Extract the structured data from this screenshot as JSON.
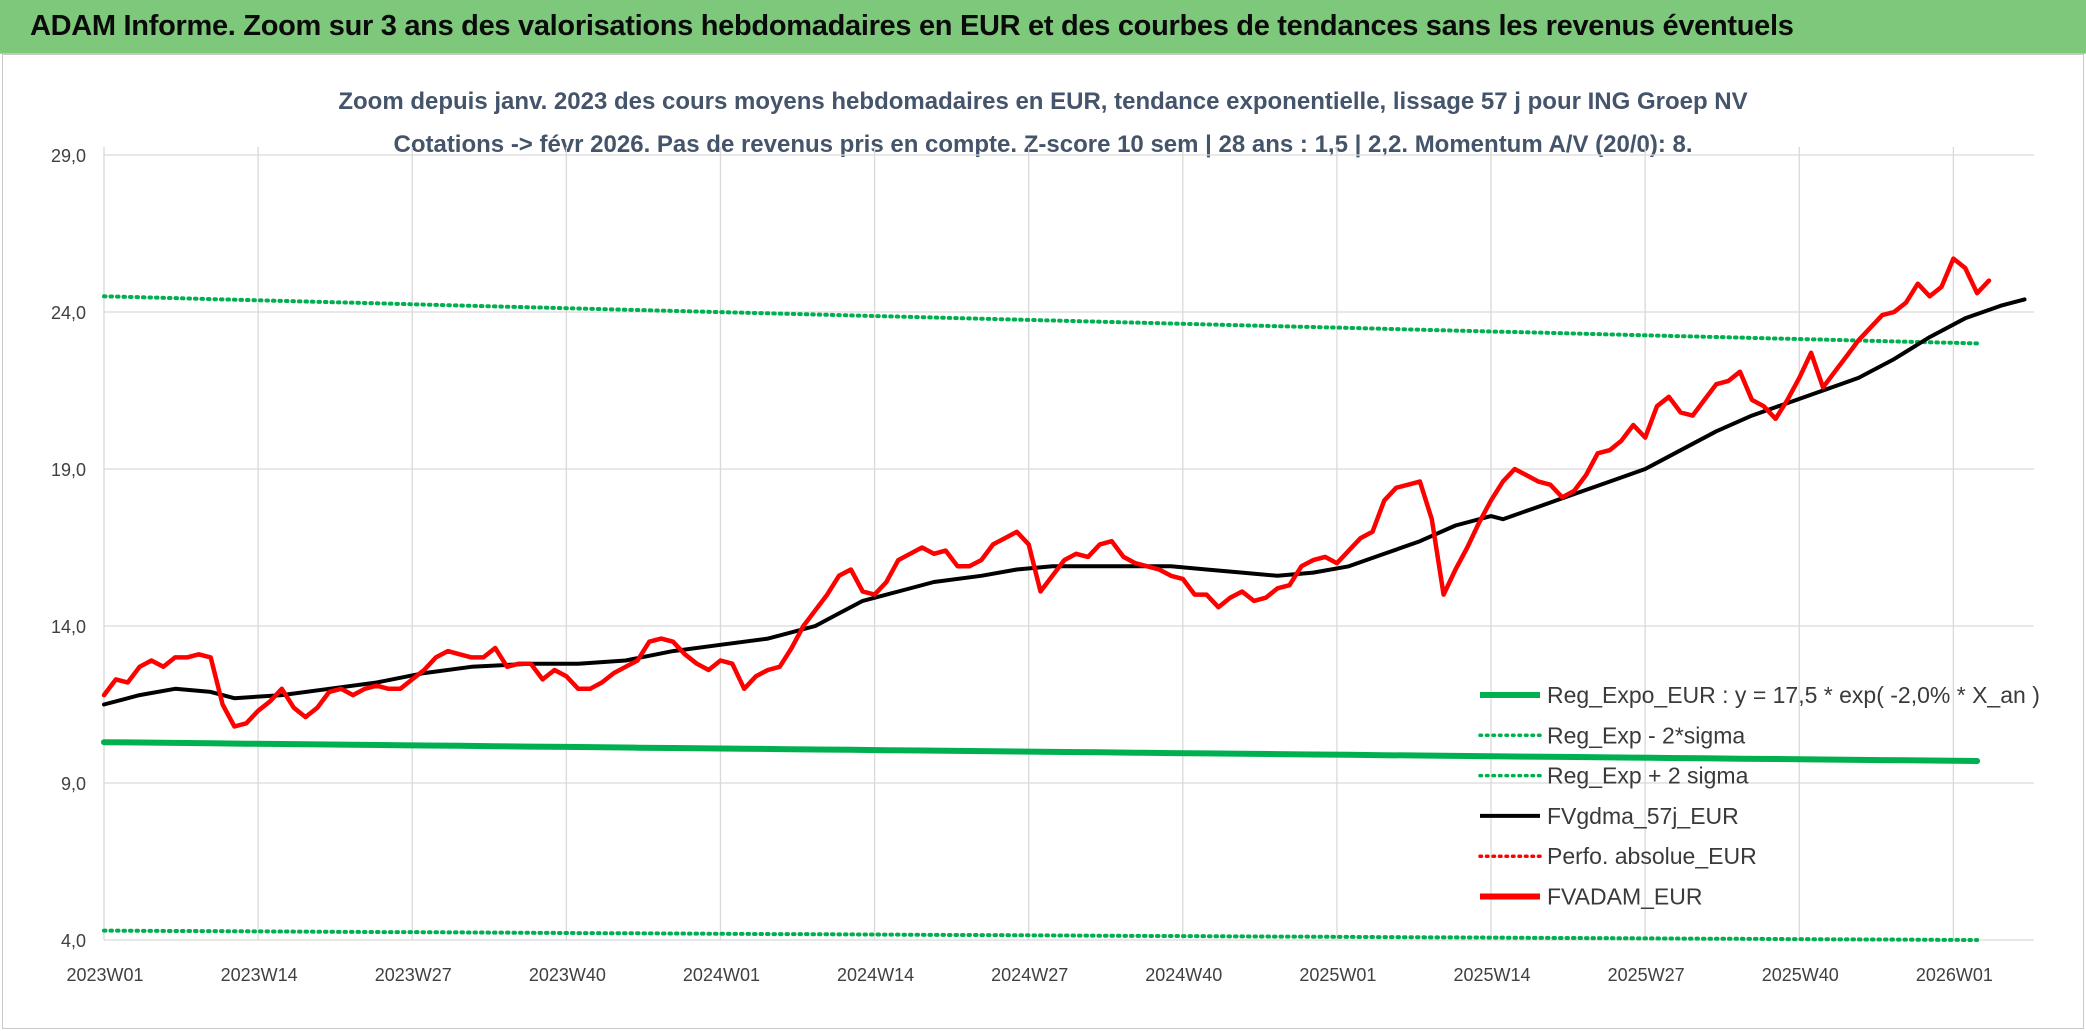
{
  "header": {
    "title": "ADAM Informe. Zoom sur 3 ans des valorisations hebdomadaires en EUR et des courbes de tendances sans les revenus éventuels"
  },
  "colors": {
    "header_bg": "#7dc87a",
    "reg_expo": "#00b050",
    "price": "#ff0000",
    "fvgdma": "#000000",
    "grid": "#d9d9d9"
  },
  "chart_data": {
    "type": "line",
    "title_line1": "Zoom depuis janv. 2023 des cours moyens hebdomadaires en EUR, tendance exponentielle, lissage 57 j pour ING Groep NV",
    "title_line2": "Cotations -> févr 2026. Pas de revenus pris en compte. Z-score 10 sem | 28 ans : 1,5 | 2,2. Momentum A/V (20/0): 8.",
    "ylim": [
      4,
      30
    ],
    "yticks": [
      4,
      9,
      14,
      19,
      24,
      29
    ],
    "ytick_labels": [
      "4,0",
      "9,0",
      "14,0",
      "19,0",
      "24,0",
      "29,0"
    ],
    "x_count": 159,
    "xticks": [
      {
        "index": 0,
        "label": "2023W01"
      },
      {
        "index": 13,
        "label": "2023W14"
      },
      {
        "index": 26,
        "label": "2023W27"
      },
      {
        "index": 39,
        "label": "2023W40"
      },
      {
        "index": 52,
        "label": "2024W01"
      },
      {
        "index": 65,
        "label": "2024W14"
      },
      {
        "index": 78,
        "label": "2024W27"
      },
      {
        "index": 91,
        "label": "2024W40"
      },
      {
        "index": 104,
        "label": "2025W01"
      },
      {
        "index": 117,
        "label": "2025W14"
      },
      {
        "index": 130,
        "label": "2025W27"
      },
      {
        "index": 143,
        "label": "2025W40"
      },
      {
        "index": 156,
        "label": "2026W01"
      }
    ],
    "series": [
      {
        "key": "reg_expo",
        "name": "Reg_Expo_EUR : y = 17,5 * exp( -2,0% *  X_an )",
        "style": "solid-thick",
        "color": "#00b050",
        "start": 10.3,
        "end": 9.7
      },
      {
        "key": "reg_minus",
        "name": "Reg_Exp - 2*sigma",
        "style": "dotted",
        "color": "#00b050",
        "start": 4.3,
        "end": 4.0
      },
      {
        "key": "reg_plus",
        "name": "Reg_Exp + 2 sigma",
        "style": "dotted",
        "color": "#00b050",
        "start": 24.5,
        "end": 23.0
      },
      {
        "key": "fvgdma",
        "name": "FVgdma_57j_EUR",
        "style": "solid",
        "color": "#000000",
        "points": [
          [
            0,
            11.5
          ],
          [
            3,
            11.8
          ],
          [
            6,
            12.0
          ],
          [
            9,
            11.9
          ],
          [
            11,
            11.7
          ],
          [
            15,
            11.8
          ],
          [
            19,
            12.0
          ],
          [
            23,
            12.2
          ],
          [
            27,
            12.5
          ],
          [
            31,
            12.7
          ],
          [
            36,
            12.8
          ],
          [
            40,
            12.8
          ],
          [
            44,
            12.9
          ],
          [
            48,
            13.2
          ],
          [
            52,
            13.4
          ],
          [
            56,
            13.6
          ],
          [
            60,
            14.0
          ],
          [
            62,
            14.4
          ],
          [
            64,
            14.8
          ],
          [
            67,
            15.1
          ],
          [
            70,
            15.4
          ],
          [
            74,
            15.6
          ],
          [
            77,
            15.8
          ],
          [
            80,
            15.9
          ],
          [
            83,
            15.9
          ],
          [
            87,
            15.9
          ],
          [
            90,
            15.9
          ],
          [
            93,
            15.8
          ],
          [
            96,
            15.7
          ],
          [
            99,
            15.6
          ],
          [
            102,
            15.7
          ],
          [
            105,
            15.9
          ],
          [
            108,
            16.3
          ],
          [
            111,
            16.7
          ],
          [
            114,
            17.2
          ],
          [
            117,
            17.5
          ],
          [
            118,
            17.4
          ],
          [
            121,
            17.8
          ],
          [
            124,
            18.2
          ],
          [
            127,
            18.6
          ],
          [
            130,
            19.0
          ],
          [
            133,
            19.6
          ],
          [
            136,
            20.2
          ],
          [
            139,
            20.7
          ],
          [
            142,
            21.1
          ],
          [
            145,
            21.5
          ],
          [
            148,
            21.9
          ],
          [
            151,
            22.5
          ],
          [
            154,
            23.2
          ],
          [
            157,
            23.8
          ],
          [
            160,
            24.2
          ],
          [
            162,
            24.4
          ]
        ]
      },
      {
        "key": "perfo",
        "name": "Perfo. absolue_EUR",
        "style": "dotted",
        "color": "#ff0000"
      },
      {
        "key": "price",
        "name": "FVADAM_EUR",
        "style": "solid-thick",
        "color": "#ff0000",
        "points": [
          [
            0,
            11.8
          ],
          [
            1,
            12.3
          ],
          [
            2,
            12.2
          ],
          [
            3,
            12.7
          ],
          [
            4,
            12.9
          ],
          [
            5,
            12.7
          ],
          [
            6,
            13.0
          ],
          [
            7,
            13.0
          ],
          [
            8,
            13.1
          ],
          [
            9,
            13.0
          ],
          [
            10,
            11.5
          ],
          [
            11,
            10.8
          ],
          [
            12,
            10.9
          ],
          [
            13,
            11.3
          ],
          [
            14,
            11.6
          ],
          [
            15,
            12.0
          ],
          [
            16,
            11.4
          ],
          [
            17,
            11.1
          ],
          [
            18,
            11.4
          ],
          [
            19,
            11.9
          ],
          [
            20,
            12.0
          ],
          [
            21,
            11.8
          ],
          [
            22,
            12.0
          ],
          [
            23,
            12.1
          ],
          [
            24,
            12.0
          ],
          [
            25,
            12.0
          ],
          [
            26,
            12.3
          ],
          [
            27,
            12.6
          ],
          [
            28,
            13.0
          ],
          [
            29,
            13.2
          ],
          [
            30,
            13.1
          ],
          [
            31,
            13.0
          ],
          [
            32,
            13.0
          ],
          [
            33,
            13.3
          ],
          [
            34,
            12.7
          ],
          [
            35,
            12.8
          ],
          [
            36,
            12.8
          ],
          [
            37,
            12.3
          ],
          [
            38,
            12.6
          ],
          [
            39,
            12.4
          ],
          [
            40,
            12.0
          ],
          [
            41,
            12.0
          ],
          [
            42,
            12.2
          ],
          [
            43,
            12.5
          ],
          [
            44,
            12.7
          ],
          [
            45,
            12.9
          ],
          [
            46,
            13.5
          ],
          [
            47,
            13.6
          ],
          [
            48,
            13.5
          ],
          [
            49,
            13.1
          ],
          [
            50,
            12.8
          ],
          [
            51,
            12.6
          ],
          [
            52,
            12.9
          ],
          [
            53,
            12.8
          ],
          [
            54,
            12.0
          ],
          [
            55,
            12.4
          ],
          [
            56,
            12.6
          ],
          [
            57,
            12.7
          ],
          [
            58,
            13.3
          ],
          [
            59,
            14.0
          ],
          [
            60,
            14.5
          ],
          [
            61,
            15.0
          ],
          [
            62,
            15.6
          ],
          [
            63,
            15.8
          ],
          [
            64,
            15.1
          ],
          [
            65,
            15.0
          ],
          [
            66,
            15.4
          ],
          [
            67,
            16.1
          ],
          [
            68,
            16.3
          ],
          [
            69,
            16.5
          ],
          [
            70,
            16.3
          ],
          [
            71,
            16.4
          ],
          [
            72,
            15.9
          ],
          [
            73,
            15.9
          ],
          [
            74,
            16.1
          ],
          [
            75,
            16.6
          ],
          [
            76,
            16.8
          ],
          [
            77,
            17.0
          ],
          [
            78,
            16.6
          ],
          [
            79,
            15.1
          ],
          [
            80,
            15.6
          ],
          [
            81,
            16.1
          ],
          [
            82,
            16.3
          ],
          [
            83,
            16.2
          ],
          [
            84,
            16.6
          ],
          [
            85,
            16.7
          ],
          [
            86,
            16.2
          ],
          [
            87,
            16.0
          ],
          [
            88,
            15.9
          ],
          [
            89,
            15.8
          ],
          [
            90,
            15.6
          ],
          [
            91,
            15.5
          ],
          [
            92,
            15.0
          ],
          [
            93,
            15.0
          ],
          [
            94,
            14.6
          ],
          [
            95,
            14.9
          ],
          [
            96,
            15.1
          ],
          [
            97,
            14.8
          ],
          [
            98,
            14.9
          ],
          [
            99,
            15.2
          ],
          [
            100,
            15.3
          ],
          [
            101,
            15.9
          ],
          [
            102,
            16.1
          ],
          [
            103,
            16.2
          ],
          [
            104,
            16.0
          ],
          [
            105,
            16.4
          ],
          [
            106,
            16.8
          ],
          [
            107,
            17.0
          ],
          [
            108,
            18.0
          ],
          [
            109,
            18.4
          ],
          [
            110,
            18.5
          ],
          [
            111,
            18.6
          ],
          [
            112,
            17.4
          ],
          [
            113,
            15.0
          ],
          [
            114,
            15.8
          ],
          [
            115,
            16.5
          ],
          [
            116,
            17.3
          ],
          [
            117,
            18.0
          ],
          [
            118,
            18.6
          ],
          [
            119,
            19.0
          ],
          [
            120,
            18.8
          ],
          [
            121,
            18.6
          ],
          [
            122,
            18.5
          ],
          [
            123,
            18.1
          ],
          [
            124,
            18.3
          ],
          [
            125,
            18.8
          ],
          [
            126,
            19.5
          ],
          [
            127,
            19.6
          ],
          [
            128,
            19.9
          ],
          [
            129,
            20.4
          ],
          [
            130,
            20.0
          ],
          [
            131,
            21.0
          ],
          [
            132,
            21.3
          ],
          [
            133,
            20.8
          ],
          [
            134,
            20.7
          ],
          [
            135,
            21.2
          ],
          [
            136,
            21.7
          ],
          [
            137,
            21.8
          ],
          [
            138,
            22.1
          ],
          [
            139,
            21.2
          ],
          [
            140,
            21.0
          ],
          [
            141,
            20.6
          ],
          [
            142,
            21.2
          ],
          [
            143,
            21.9
          ],
          [
            144,
            22.7
          ],
          [
            145,
            21.6
          ],
          [
            146,
            22.1
          ],
          [
            147,
            22.6
          ],
          [
            148,
            23.1
          ],
          [
            149,
            23.5
          ],
          [
            150,
            23.9
          ],
          [
            151,
            24.0
          ],
          [
            152,
            24.3
          ],
          [
            153,
            24.9
          ],
          [
            154,
            24.5
          ],
          [
            155,
            24.8
          ],
          [
            156,
            25.7
          ],
          [
            157,
            25.4
          ],
          [
            158,
            24.6
          ],
          [
            159,
            25.0
          ]
        ]
      }
    ]
  }
}
